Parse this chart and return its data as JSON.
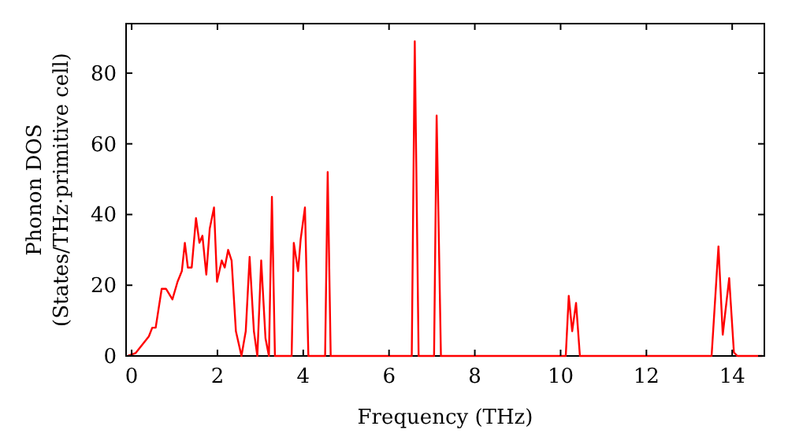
{
  "chart_data": {
    "type": "line",
    "xlabel": "Frequency (THz)",
    "ylabel": "Phonon DOS\n(States/THz·primitive cell)",
    "xlim": [
      -0.13,
      14.75
    ],
    "ylim": [
      0,
      94
    ],
    "xticks": [
      0,
      2,
      4,
      6,
      8,
      10,
      12,
      14
    ],
    "yticks": [
      0,
      20,
      40,
      60,
      80
    ],
    "grid": false,
    "line_style": "solid",
    "series": [
      {
        "color": "#ff0000",
        "x": [
          -0.09,
          0.09,
          0.4,
          0.48,
          0.56,
          0.7,
          0.8,
          0.95,
          1.07,
          1.17,
          1.24,
          1.31,
          1.4,
          1.5,
          1.58,
          1.65,
          1.74,
          1.82,
          1.92,
          1.99,
          2.1,
          2.17,
          2.25,
          2.33,
          2.43,
          2.56,
          2.66,
          2.75,
          2.85,
          2.93,
          3.02,
          3.12,
          3.2,
          3.27,
          3.34,
          3.73,
          3.78,
          3.88,
          3.94,
          4.04,
          4.12,
          4.51,
          4.57,
          4.64,
          6.53,
          6.6,
          6.69,
          7.05,
          7.11,
          7.21,
          10.12,
          10.19,
          10.27,
          10.36,
          10.45,
          13.52,
          13.68,
          13.78,
          13.93,
          14.04,
          14.12,
          14.7
        ],
        "values": [
          0,
          0.8,
          5.5,
          8,
          8,
          19,
          19,
          16,
          21,
          24,
          32,
          25,
          25,
          39,
          32,
          34,
          23,
          36,
          42,
          21,
          27,
          25,
          30,
          27,
          7,
          0,
          7,
          28,
          7,
          0,
          27,
          5,
          0,
          45,
          0,
          0,
          32,
          24,
          33,
          42,
          0,
          0,
          52,
          0,
          0,
          89,
          0,
          0,
          68,
          0,
          0,
          17,
          7,
          15,
          0,
          0,
          31,
          6,
          22,
          1,
          0,
          0
        ]
      }
    ]
  }
}
